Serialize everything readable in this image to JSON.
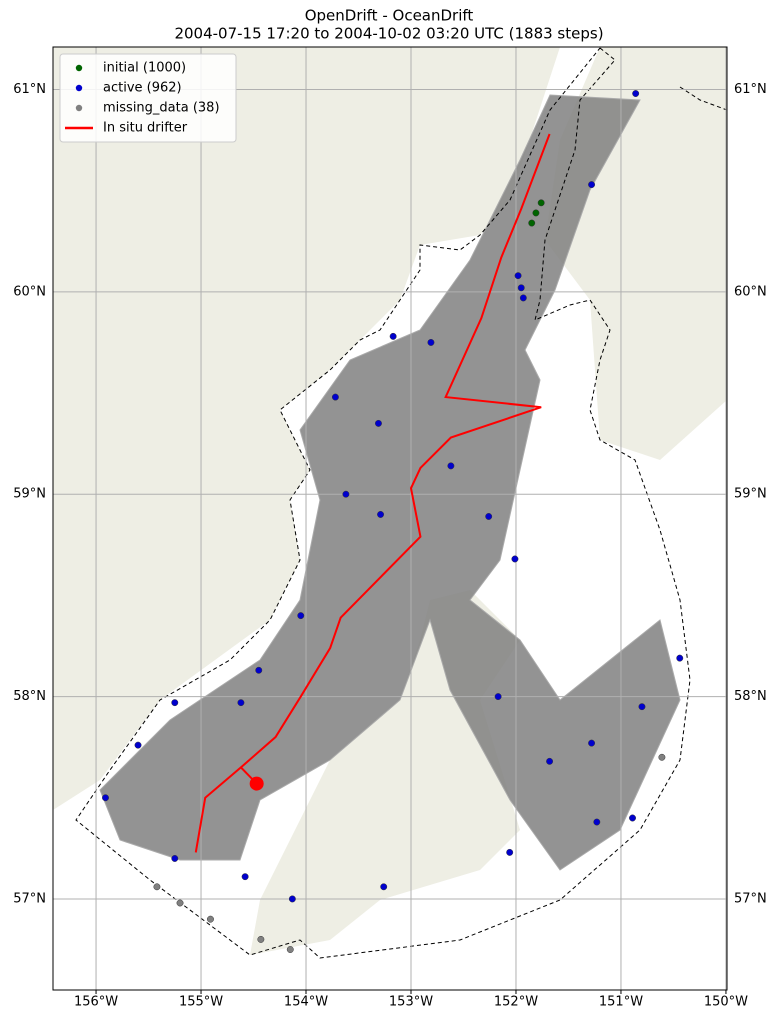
{
  "chart_data": {
    "type": "map",
    "title": "OpenDrift - OceanDrift",
    "subtitle": "2004-07-15 17:20 to 2004-10-02 03:20 UTC (1883 steps)",
    "xlim": [
      -156.41,
      -149.99
    ],
    "ylim": [
      56.55,
      61.21
    ],
    "xticks": [
      {
        "value": -156,
        "label": "156°W"
      },
      {
        "value": -155,
        "label": "155°W"
      },
      {
        "value": -154,
        "label": "154°W"
      },
      {
        "value": -153,
        "label": "153°W"
      },
      {
        "value": -152,
        "label": "152°W"
      },
      {
        "value": -151,
        "label": "151°W"
      },
      {
        "value": -150,
        "label": "150°W"
      }
    ],
    "yticks": [
      {
        "value": 57,
        "label": "57°N"
      },
      {
        "value": 58,
        "label": "58°N"
      },
      {
        "value": 59,
        "label": "59°N"
      },
      {
        "value": 60,
        "label": "60°N"
      },
      {
        "value": 61,
        "label": "61°N"
      }
    ],
    "grid": true,
    "legend": "upper left",
    "series": [
      {
        "name": "initial (1000)",
        "color": "#006400",
        "kind": "points",
        "x": [
          -151.81,
          -151.85,
          -151.76
        ],
        "y": [
          60.39,
          60.34,
          60.44
        ]
      },
      {
        "name": "active (962)",
        "color": "#0000cd",
        "kind": "points",
        "x": [
          -150.86,
          -151.28,
          -151.95,
          -151.98,
          -151.93,
          -152.81,
          -153.17,
          -153.72,
          -153.62,
          -153.29,
          -152.26,
          -152.01,
          -154.05,
          -154.45,
          -154.62,
          -155.25,
          -155.6,
          -155.91,
          -155.25,
          -154.58,
          -154.13,
          -153.26,
          -152.06,
          -152.17,
          -151.68,
          -151.28,
          -150.8,
          -150.44,
          -150.89,
          -151.23,
          -152.62,
          -153.31
        ],
        "y": [
          60.98,
          60.53,
          60.02,
          60.08,
          59.97,
          59.75,
          59.78,
          59.48,
          59.0,
          58.9,
          58.89,
          58.68,
          58.4,
          58.13,
          57.97,
          57.97,
          57.76,
          57.5,
          57.2,
          57.11,
          57.0,
          57.06,
          57.23,
          58.0,
          57.68,
          57.77,
          57.95,
          58.19,
          57.4,
          57.38,
          59.14,
          59.35
        ]
      },
      {
        "name": "missing_data (38)",
        "color": "#808080",
        "kind": "points",
        "x": [
          -155.42,
          -155.2,
          -154.91,
          -154.43,
          -154.15,
          -150.61
        ],
        "y": [
          57.06,
          56.98,
          56.9,
          56.8,
          56.75,
          57.7
        ]
      },
      {
        "name": "In situ drifter",
        "color": "#ff0000",
        "kind": "line",
        "x": [
          -154.47,
          -154.62,
          -154.96,
          -155.05,
          -154.96,
          -154.62,
          -154.29,
          -154.05,
          -153.77,
          -153.67,
          -153.29,
          -152.91,
          -153.0,
          -152.91,
          -152.62,
          -151.76,
          -152.67,
          -152.33,
          -152.14,
          -151.95,
          -151.68
        ],
        "y": [
          57.57,
          57.65,
          57.5,
          57.23,
          57.5,
          57.65,
          57.8,
          58.0,
          58.24,
          58.39,
          58.59,
          58.79,
          59.03,
          59.13,
          59.28,
          59.43,
          59.48,
          59.87,
          60.17,
          60.41,
          60.78
        ]
      }
    ]
  }
}
